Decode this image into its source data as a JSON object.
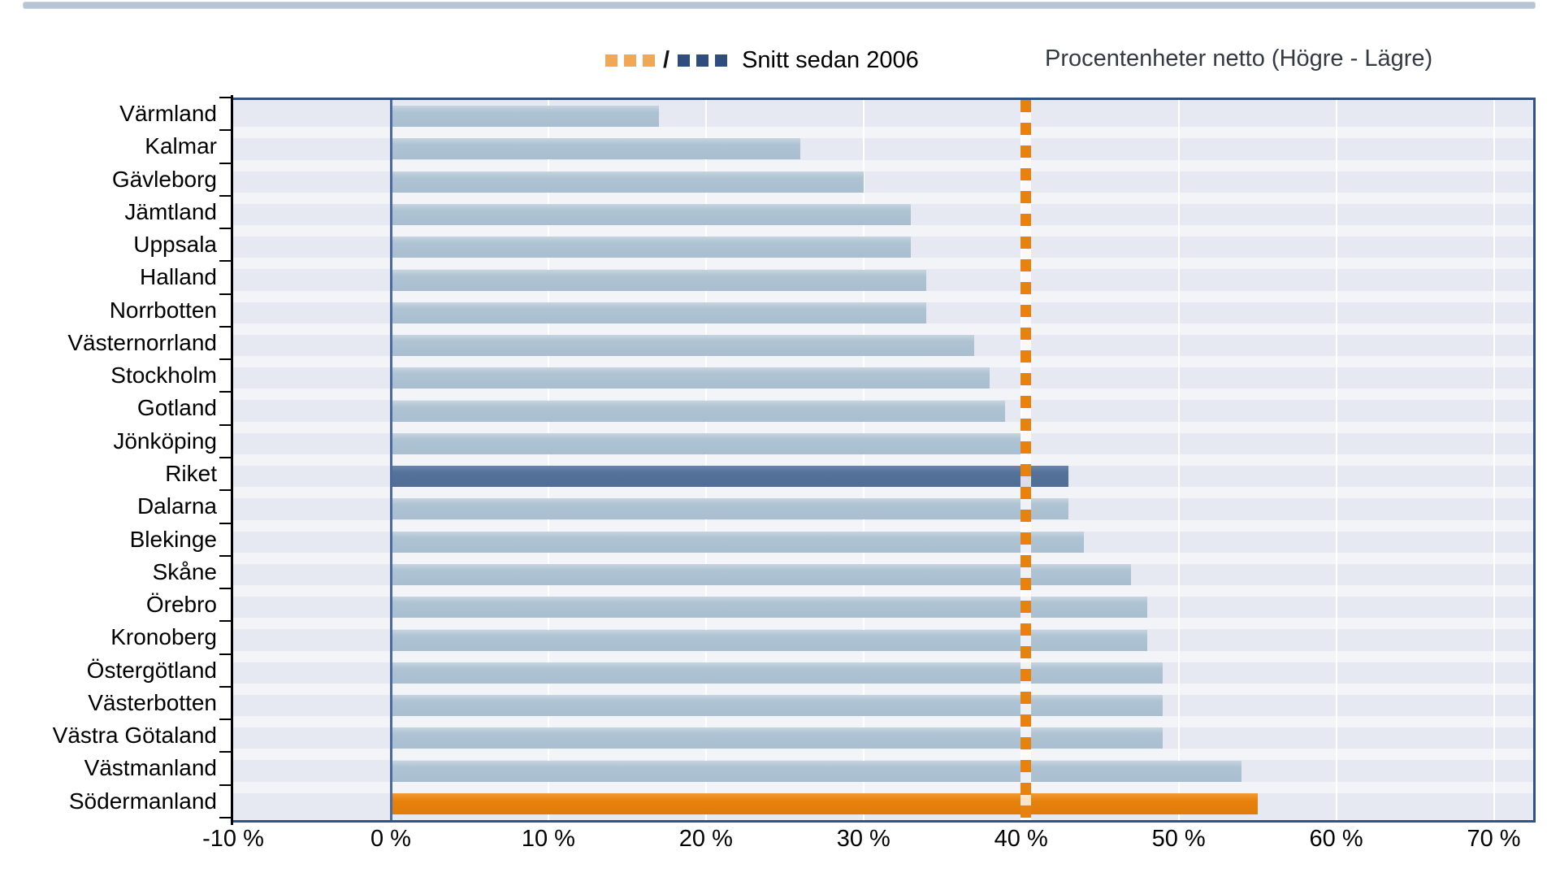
{
  "legend": {
    "label": "Snitt sedan 2006",
    "separator": "/",
    "orange_swatch_color": "#f0a855",
    "navy_swatch_color": "#2f4d7f"
  },
  "axis_title_right": "Procentenheter netto (Högre - Lägre)",
  "chart_data": {
    "type": "bar",
    "orientation": "horizontal",
    "title": "",
    "xlabel": "Procentenheter netto (Högre - Lägre)",
    "ylabel": "",
    "categories": [
      "Värmland",
      "Kalmar",
      "Gävleborg",
      "Jämtland",
      "Uppsala",
      "Halland",
      "Norrbotten",
      "Västernorrland",
      "Stockholm",
      "Gotland",
      "Jönköping",
      "Riket",
      "Dalarna",
      "Blekinge",
      "Skåne",
      "Örebro",
      "Kronoberg",
      "Östergötland",
      "Västerbotten",
      "Västra Götaland",
      "Västmanland",
      "Södermanland"
    ],
    "values": [
      17,
      26,
      30,
      33,
      33,
      34,
      34,
      37,
      38,
      39,
      40,
      43,
      43,
      44,
      47,
      48,
      48,
      49,
      49,
      49,
      54,
      55
    ],
    "unit": "%",
    "xlim": [
      -10,
      72.5
    ],
    "x_tick_values": [
      -10,
      0,
      10,
      20,
      30,
      40,
      50,
      60,
      70
    ],
    "x_tick_labels": [
      "-10 %",
      "0 %",
      "10 %",
      "20 %",
      "30 %",
      "40 %",
      "50 %",
      "60 %",
      "70 %"
    ],
    "grid": "vertical white gridlines every 10 %",
    "legend_position": "top-center",
    "bar_color_default": "#aec3d3",
    "special_bars": {
      "Riket": "#55739a",
      "Södermanland": "#e8820e"
    },
    "reference_line": {
      "label": "Snitt sedan 2006",
      "value": 40.3,
      "color": "#e8820e",
      "style": "dashed-vertical"
    }
  },
  "colors": {
    "plot_background": "#e6e9f1",
    "frame_border": "#2e5384",
    "zero_axis": "#4a6b9e",
    "axis_and_text": "#000000",
    "top_strip": "#b6c4d3",
    "right_title_text": "#333a42"
  }
}
